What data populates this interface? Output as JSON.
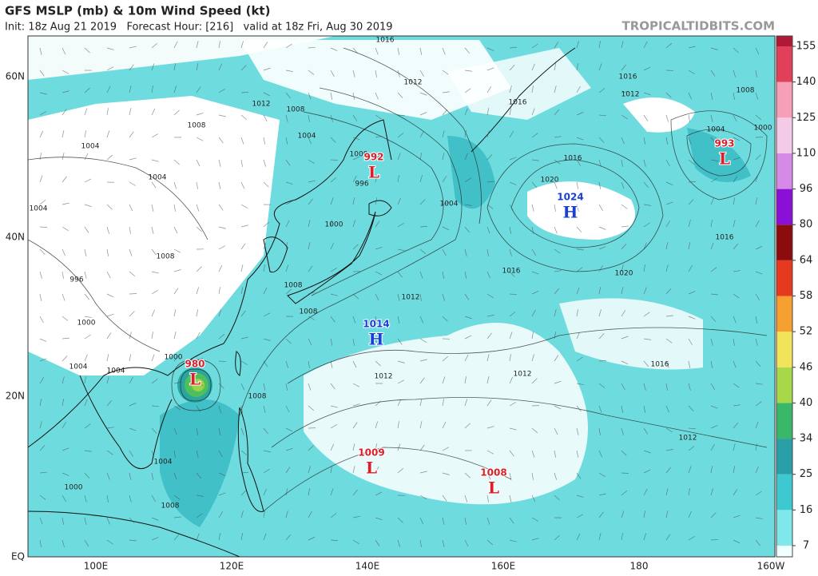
{
  "header": {
    "title": "GFS MSLP (mb) & 10m Wind Speed (kt)",
    "subtitle": "Init: 18z Aug 21 2019   Forecast Hour: [216]   valid at 18z Fri, Aug 30 2019",
    "site": "TROPICALTIDBITS.COM"
  },
  "axes": {
    "lat_labels": [
      "60N",
      "40N",
      "20N",
      "EQ"
    ],
    "lon_labels": [
      "100E",
      "120E",
      "140E",
      "160E",
      "180",
      "160W"
    ]
  },
  "colorbar": {
    "labels": [
      7,
      16,
      25,
      34,
      40,
      46,
      52,
      58,
      64,
      80,
      96,
      110,
      125,
      140,
      155
    ]
  },
  "centers": [
    {
      "value": 992,
      "kind": "L"
    },
    {
      "value": 993,
      "kind": "L"
    },
    {
      "value": 1024,
      "kind": "H"
    },
    {
      "value": 1014,
      "kind": "H"
    },
    {
      "value": 980,
      "kind": "L"
    },
    {
      "value": 1009,
      "kind": "L"
    },
    {
      "value": 1008,
      "kind": "L"
    }
  ],
  "isobar_labels": [
    1016,
    1012,
    1012,
    1008,
    1008,
    1004,
    1004,
    1004,
    1004,
    1008,
    996,
    1000,
    1004,
    1004,
    1000,
    1000,
    996,
    1004,
    1016,
    1020,
    1016,
    1012,
    1008,
    1000,
    1004,
    1016,
    1020,
    1016,
    1012,
    1008,
    1008,
    1012,
    1012,
    1016,
    1012,
    1008,
    1004,
    1008,
    1000,
    1000,
    1016
  ]
}
